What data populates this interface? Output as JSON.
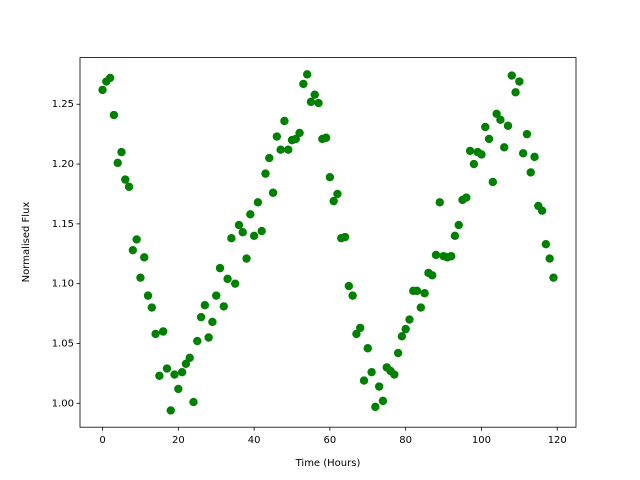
{
  "chart_data": {
    "type": "scatter",
    "xlabel": "Time (Hours)",
    "ylabel": "Normalised Flux",
    "color": "#008000",
    "x": [
      0,
      1,
      2,
      3,
      4,
      5,
      6,
      7,
      8,
      9,
      10,
      11,
      12,
      13,
      14,
      15,
      16,
      17,
      18,
      19,
      20,
      21,
      22,
      23,
      24,
      25,
      26,
      27,
      28,
      29,
      30,
      31,
      32,
      33,
      34,
      35,
      36,
      37,
      38,
      39,
      40,
      41,
      42,
      43,
      44,
      45,
      46,
      47,
      48,
      49,
      50,
      51,
      52,
      53,
      54,
      55,
      56,
      57,
      58,
      59,
      60,
      61,
      62,
      63,
      64,
      65,
      66,
      67,
      68,
      69,
      70,
      71,
      72,
      73,
      74,
      75,
      76,
      77,
      78,
      79,
      80,
      81,
      82,
      83,
      84,
      85,
      86,
      87,
      88,
      89,
      90,
      91,
      92,
      93,
      94,
      95,
      96,
      97,
      98,
      99,
      100,
      101,
      102,
      103,
      104,
      105,
      106,
      107,
      108,
      109,
      110,
      111,
      112,
      113,
      114,
      115,
      116,
      117,
      118,
      119
    ],
    "values": [
      1.262,
      1.269,
      1.272,
      1.241,
      1.201,
      1.21,
      1.187,
      1.181,
      1.128,
      1.137,
      1.105,
      1.122,
      1.09,
      1.08,
      1.058,
      1.023,
      1.06,
      1.029,
      0.994,
      1.024,
      1.012,
      1.026,
      1.033,
      1.038,
      1.001,
      1.052,
      1.072,
      1.082,
      1.055,
      1.068,
      1.09,
      1.113,
      1.081,
      1.104,
      1.138,
      1.1,
      1.149,
      1.143,
      1.121,
      1.158,
      1.14,
      1.168,
      1.144,
      1.192,
      1.205,
      1.176,
      1.223,
      1.212,
      1.236,
      1.212,
      1.22,
      1.221,
      1.226,
      1.267,
      1.275,
      1.252,
      1.258,
      1.251,
      1.221,
      1.222,
      1.189,
      1.169,
      1.175,
      1.138,
      1.139,
      1.098,
      1.09,
      1.058,
      1.063,
      1.019,
      1.046,
      1.026,
      0.997,
      1.014,
      1.002,
      1.03,
      1.027,
      1.024,
      1.042,
      1.056,
      1.062,
      1.07,
      1.094,
      1.094,
      1.08,
      1.092,
      1.109,
      1.107,
      1.124,
      1.168,
      1.123,
      1.122,
      1.123,
      1.14,
      1.149,
      1.17,
      1.172,
      1.211,
      1.2,
      1.21,
      1.208,
      1.231,
      1.221,
      1.185,
      1.242,
      1.237,
      1.214,
      1.232,
      1.274,
      1.26,
      1.269,
      1.209,
      1.225,
      1.193,
      1.206,
      1.165,
      1.161,
      1.133,
      1.121,
      1.105
    ],
    "xlim": [
      -5.95,
      124.95
    ],
    "ylim": [
      0.98,
      1.289
    ],
    "xticks": [
      0,
      20,
      40,
      60,
      80,
      100,
      120
    ],
    "yticks": [
      {
        "value": 1,
        "label": "1.00"
      },
      1.05,
      {
        "value": 1.1,
        "label": "1.10"
      },
      1.15,
      {
        "value": 1.2,
        "label": "1.20"
      },
      1.25
    ]
  }
}
